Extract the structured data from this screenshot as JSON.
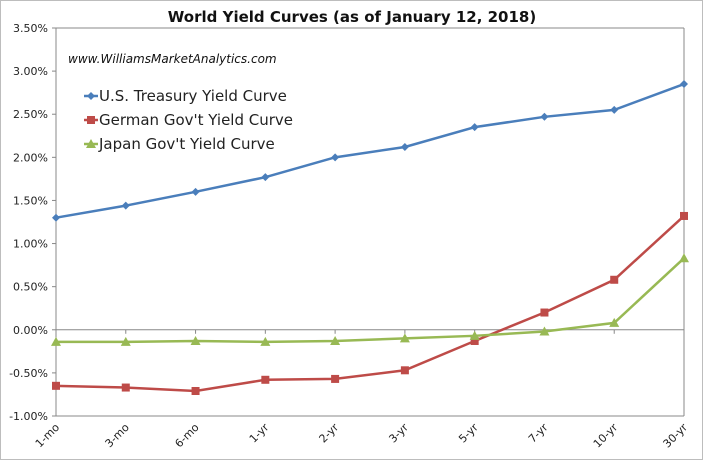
{
  "chart_data": {
    "type": "line",
    "title": "World Yield Curves (as of January 12, 2018)",
    "watermark": "www.WilliamsMarketAnalytics.com",
    "xlabel": "",
    "ylabel": "",
    "categories": [
      "1-mo",
      "3-mo",
      "6-mo",
      "1-yr",
      "2-yr",
      "3-yr",
      "5-yr",
      "7-yr",
      "10-yr",
      "30-yr"
    ],
    "ylim": [
      -1.0,
      3.5
    ],
    "yticks": [
      3.5,
      3.0,
      2.5,
      2.0,
      1.5,
      1.0,
      0.5,
      0.0,
      -0.5,
      -1.0
    ],
    "ytick_labels": [
      "3.50%",
      "3.00%",
      "2.50%",
      "2.00%",
      "1.50%",
      "1.00%",
      "0.50%",
      "0.00%",
      "-0.50%",
      "-1.00%"
    ],
    "grid": false,
    "legend_position": "top-left",
    "series": [
      {
        "name": "U.S. Treasury Yield Curve",
        "color": "#4a7ebb",
        "marker": "diamond",
        "values": [
          1.3,
          1.44,
          1.6,
          1.77,
          2.0,
          2.12,
          2.35,
          2.47,
          2.55,
          2.85
        ]
      },
      {
        "name": "German Gov't Yield Curve",
        "color": "#be4b48",
        "marker": "square",
        "values": [
          -0.65,
          -0.67,
          -0.71,
          -0.58,
          -0.57,
          -0.47,
          -0.13,
          0.2,
          0.58,
          1.32
        ]
      },
      {
        "name": "Japan Gov't Yield Curve",
        "color": "#98b954",
        "marker": "triangle",
        "values": [
          -0.14,
          -0.14,
          -0.13,
          -0.14,
          -0.13,
          -0.1,
          -0.07,
          -0.02,
          0.08,
          0.83
        ]
      }
    ]
  }
}
